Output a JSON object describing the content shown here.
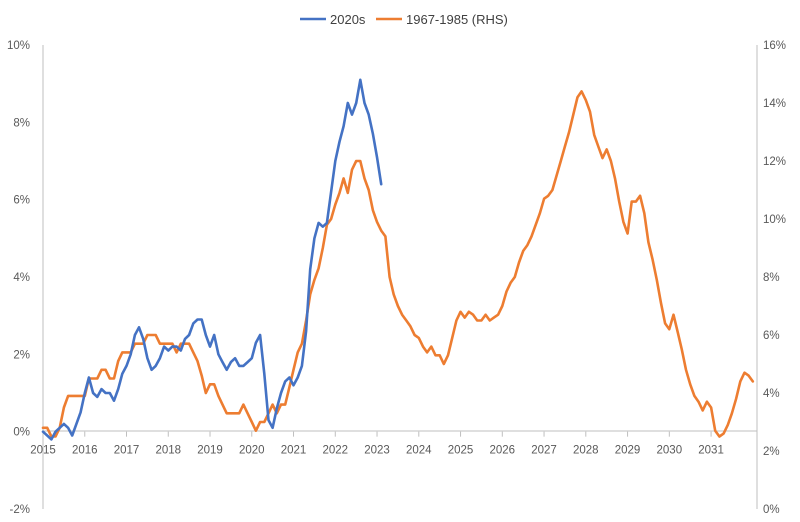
{
  "chart_data": {
    "type": "line",
    "title": "",
    "legend": [
      "2020s",
      "1967-1985 (RHS)"
    ],
    "legend_position": "top",
    "grid": false,
    "x_ticks": [
      "2015",
      "2016",
      "2017",
      "2018",
      "2019",
      "2020",
      "2021",
      "2022",
      "2023",
      "2024",
      "2025",
      "2026",
      "2027",
      "2028",
      "2029",
      "2030",
      "2031"
    ],
    "xlim": [
      2015,
      2032.1
    ],
    "left_axis": {
      "ylim": [
        -2,
        10
      ],
      "ticks": [
        "-2%",
        "0%",
        "2%",
        "4%",
        "6%",
        "8%",
        "10%"
      ]
    },
    "right_axis": {
      "ylim": [
        0,
        16
      ],
      "ticks": [
        "0%",
        "2%",
        "4%",
        "6%",
        "8%",
        "10%",
        "12%",
        "14%",
        "16%"
      ]
    },
    "series": [
      {
        "name": "2020s",
        "axis": "left",
        "color": "#4472c4",
        "points": [
          [
            2015.0,
            0.0
          ],
          [
            2015.1,
            -0.1
          ],
          [
            2015.2,
            -0.2
          ],
          [
            2015.3,
            0.0
          ],
          [
            2015.4,
            0.1
          ],
          [
            2015.5,
            0.2
          ],
          [
            2015.6,
            0.1
          ],
          [
            2015.7,
            -0.1
          ],
          [
            2015.8,
            0.2
          ],
          [
            2015.9,
            0.5
          ],
          [
            2016.0,
            1.0
          ],
          [
            2016.1,
            1.4
          ],
          [
            2016.2,
            1.0
          ],
          [
            2016.3,
            0.9
          ],
          [
            2016.4,
            1.1
          ],
          [
            2016.5,
            1.0
          ],
          [
            2016.6,
            1.0
          ],
          [
            2016.7,
            0.8
          ],
          [
            2016.8,
            1.1
          ],
          [
            2016.9,
            1.5
          ],
          [
            2017.0,
            1.7
          ],
          [
            2017.1,
            2.0
          ],
          [
            2017.2,
            2.5
          ],
          [
            2017.3,
            2.7
          ],
          [
            2017.4,
            2.4
          ],
          [
            2017.5,
            1.9
          ],
          [
            2017.6,
            1.6
          ],
          [
            2017.7,
            1.7
          ],
          [
            2017.8,
            1.9
          ],
          [
            2017.9,
            2.2
          ],
          [
            2018.0,
            2.1
          ],
          [
            2018.1,
            2.2
          ],
          [
            2018.2,
            2.2
          ],
          [
            2018.3,
            2.1
          ],
          [
            2018.4,
            2.4
          ],
          [
            2018.5,
            2.5
          ],
          [
            2018.6,
            2.8
          ],
          [
            2018.7,
            2.9
          ],
          [
            2018.8,
            2.9
          ],
          [
            2018.9,
            2.5
          ],
          [
            2019.0,
            2.2
          ],
          [
            2019.1,
            2.5
          ],
          [
            2019.2,
            2.0
          ],
          [
            2019.3,
            1.8
          ],
          [
            2019.4,
            1.6
          ],
          [
            2019.5,
            1.8
          ],
          [
            2019.6,
            1.9
          ],
          [
            2019.7,
            1.7
          ],
          [
            2019.8,
            1.7
          ],
          [
            2019.9,
            1.8
          ],
          [
            2020.0,
            1.9
          ],
          [
            2020.1,
            2.3
          ],
          [
            2020.2,
            2.5
          ],
          [
            2020.3,
            1.5
          ],
          [
            2020.4,
            0.3
          ],
          [
            2020.5,
            0.1
          ],
          [
            2020.6,
            0.6
          ],
          [
            2020.7,
            1.0
          ],
          [
            2020.8,
            1.3
          ],
          [
            2020.9,
            1.4
          ],
          [
            2021.0,
            1.2
          ],
          [
            2021.1,
            1.4
          ],
          [
            2021.2,
            1.7
          ],
          [
            2021.3,
            2.6
          ],
          [
            2021.4,
            4.2
          ],
          [
            2021.5,
            5.0
          ],
          [
            2021.6,
            5.4
          ],
          [
            2021.7,
            5.3
          ],
          [
            2021.8,
            5.4
          ],
          [
            2021.9,
            6.2
          ],
          [
            2022.0,
            7.0
          ],
          [
            2022.1,
            7.5
          ],
          [
            2022.2,
            7.9
          ],
          [
            2022.3,
            8.5
          ],
          [
            2022.4,
            8.2
          ],
          [
            2022.5,
            8.5
          ],
          [
            2022.6,
            9.1
          ],
          [
            2022.7,
            8.5
          ],
          [
            2022.8,
            8.2
          ],
          [
            2022.9,
            7.7
          ],
          [
            2023.0,
            7.1
          ],
          [
            2023.1,
            6.4
          ]
        ]
      },
      {
        "name": "1967-1985 (RHS)",
        "axis": "right",
        "color": "#ed7d31",
        "points": [
          [
            2015.0,
            2.8
          ],
          [
            2015.1,
            2.8
          ],
          [
            2015.2,
            2.5
          ],
          [
            2015.3,
            2.5
          ],
          [
            2015.4,
            2.8
          ],
          [
            2015.5,
            3.5
          ],
          [
            2015.6,
            3.9
          ],
          [
            2015.7,
            3.9
          ],
          [
            2015.8,
            3.9
          ],
          [
            2015.9,
            3.9
          ],
          [
            2016.0,
            3.9
          ],
          [
            2016.1,
            4.5
          ],
          [
            2016.2,
            4.5
          ],
          [
            2016.3,
            4.5
          ],
          [
            2016.4,
            4.8
          ],
          [
            2016.5,
            4.8
          ],
          [
            2016.6,
            4.5
          ],
          [
            2016.7,
            4.5
          ],
          [
            2016.8,
            5.1
          ],
          [
            2016.9,
            5.4
          ],
          [
            2017.0,
            5.4
          ],
          [
            2017.1,
            5.4
          ],
          [
            2017.2,
            5.7
          ],
          [
            2017.3,
            5.7
          ],
          [
            2017.4,
            5.7
          ],
          [
            2017.5,
            6.0
          ],
          [
            2017.6,
            6.0
          ],
          [
            2017.7,
            6.0
          ],
          [
            2017.8,
            5.7
          ],
          [
            2017.9,
            5.7
          ],
          [
            2018.0,
            5.7
          ],
          [
            2018.1,
            5.7
          ],
          [
            2018.2,
            5.4
          ],
          [
            2018.3,
            5.7
          ],
          [
            2018.4,
            5.7
          ],
          [
            2018.5,
            5.7
          ],
          [
            2018.6,
            5.4
          ],
          [
            2018.7,
            5.1
          ],
          [
            2018.8,
            4.6
          ],
          [
            2018.9,
            4.0
          ],
          [
            2019.0,
            4.3
          ],
          [
            2019.1,
            4.3
          ],
          [
            2019.2,
            3.9
          ],
          [
            2019.3,
            3.6
          ],
          [
            2019.4,
            3.3
          ],
          [
            2019.5,
            3.3
          ],
          [
            2019.6,
            3.3
          ],
          [
            2019.7,
            3.3
          ],
          [
            2019.8,
            3.6
          ],
          [
            2019.9,
            3.3
          ],
          [
            2020.0,
            3.0
          ],
          [
            2020.1,
            2.7
          ],
          [
            2020.2,
            3.0
          ],
          [
            2020.3,
            3.0
          ],
          [
            2020.4,
            3.3
          ],
          [
            2020.5,
            3.6
          ],
          [
            2020.6,
            3.3
          ],
          [
            2020.7,
            3.6
          ],
          [
            2020.8,
            3.6
          ],
          [
            2020.9,
            4.2
          ],
          [
            2021.0,
            4.8
          ],
          [
            2021.1,
            5.4
          ],
          [
            2021.2,
            5.7
          ],
          [
            2021.3,
            6.5
          ],
          [
            2021.4,
            7.4
          ],
          [
            2021.5,
            7.9
          ],
          [
            2021.6,
            8.3
          ],
          [
            2021.7,
            9.0
          ],
          [
            2021.8,
            9.8
          ],
          [
            2021.9,
            10.0
          ],
          [
            2022.0,
            10.5
          ],
          [
            2022.1,
            10.9
          ],
          [
            2022.2,
            11.4
          ],
          [
            2022.3,
            10.9
          ],
          [
            2022.4,
            11.7
          ],
          [
            2022.5,
            12.0
          ],
          [
            2022.6,
            12.0
          ],
          [
            2022.7,
            11.4
          ],
          [
            2022.8,
            11.0
          ],
          [
            2022.9,
            10.3
          ],
          [
            2023.0,
            9.9
          ],
          [
            2023.1,
            9.6
          ],
          [
            2023.2,
            9.4
          ],
          [
            2023.3,
            8.0
          ],
          [
            2023.4,
            7.4
          ],
          [
            2023.5,
            7.0
          ],
          [
            2023.6,
            6.7
          ],
          [
            2023.7,
            6.5
          ],
          [
            2023.8,
            6.3
          ],
          [
            2023.9,
            6.0
          ],
          [
            2024.0,
            5.9
          ],
          [
            2024.1,
            5.6
          ],
          [
            2024.2,
            5.4
          ],
          [
            2024.3,
            5.6
          ],
          [
            2024.4,
            5.3
          ],
          [
            2024.5,
            5.3
          ],
          [
            2024.6,
            5.0
          ],
          [
            2024.7,
            5.3
          ],
          [
            2024.8,
            5.9
          ],
          [
            2024.9,
            6.5
          ],
          [
            2025.0,
            6.8
          ],
          [
            2025.1,
            6.6
          ],
          [
            2025.2,
            6.8
          ],
          [
            2025.3,
            6.7
          ],
          [
            2025.4,
            6.5
          ],
          [
            2025.5,
            6.5
          ],
          [
            2025.6,
            6.7
          ],
          [
            2025.7,
            6.5
          ],
          [
            2025.8,
            6.6
          ],
          [
            2025.9,
            6.7
          ],
          [
            2026.0,
            7.0
          ],
          [
            2026.1,
            7.5
          ],
          [
            2026.2,
            7.8
          ],
          [
            2026.3,
            8.0
          ],
          [
            2026.4,
            8.5
          ],
          [
            2026.5,
            8.9
          ],
          [
            2026.6,
            9.1
          ],
          [
            2026.7,
            9.4
          ],
          [
            2026.8,
            9.8
          ],
          [
            2026.9,
            10.2
          ],
          [
            2027.0,
            10.7
          ],
          [
            2027.1,
            10.8
          ],
          [
            2027.2,
            11.0
          ],
          [
            2027.3,
            11.5
          ],
          [
            2027.4,
            12.0
          ],
          [
            2027.5,
            12.5
          ],
          [
            2027.6,
            13.0
          ],
          [
            2027.7,
            13.6
          ],
          [
            2027.8,
            14.2
          ],
          [
            2027.9,
            14.4
          ],
          [
            2028.0,
            14.1
          ],
          [
            2028.1,
            13.7
          ],
          [
            2028.2,
            12.9
          ],
          [
            2028.3,
            12.5
          ],
          [
            2028.4,
            12.1
          ],
          [
            2028.5,
            12.4
          ],
          [
            2028.6,
            12.0
          ],
          [
            2028.7,
            11.4
          ],
          [
            2028.8,
            10.6
          ],
          [
            2028.9,
            9.9
          ],
          [
            2029.0,
            9.5
          ],
          [
            2029.1,
            10.6
          ],
          [
            2029.2,
            10.6
          ],
          [
            2029.3,
            10.8
          ],
          [
            2029.4,
            10.2
          ],
          [
            2029.5,
            9.2
          ],
          [
            2029.6,
            8.6
          ],
          [
            2029.7,
            7.9
          ],
          [
            2029.8,
            7.1
          ],
          [
            2029.9,
            6.4
          ],
          [
            2030.0,
            6.2
          ],
          [
            2030.1,
            6.7
          ],
          [
            2030.2,
            6.1
          ],
          [
            2030.3,
            5.5
          ],
          [
            2030.4,
            4.8
          ],
          [
            2030.5,
            4.3
          ],
          [
            2030.6,
            3.9
          ],
          [
            2030.7,
            3.7
          ],
          [
            2030.8,
            3.4
          ],
          [
            2030.9,
            3.7
          ],
          [
            2031.0,
            3.5
          ],
          [
            2031.1,
            2.7
          ],
          [
            2031.2,
            2.5
          ],
          [
            2031.3,
            2.6
          ],
          [
            2031.4,
            2.9
          ],
          [
            2031.5,
            3.3
          ],
          [
            2031.6,
            3.8
          ],
          [
            2031.7,
            4.4
          ],
          [
            2031.8,
            4.7
          ],
          [
            2031.9,
            4.6
          ],
          [
            2032.0,
            4.4
          ]
        ]
      }
    ]
  }
}
